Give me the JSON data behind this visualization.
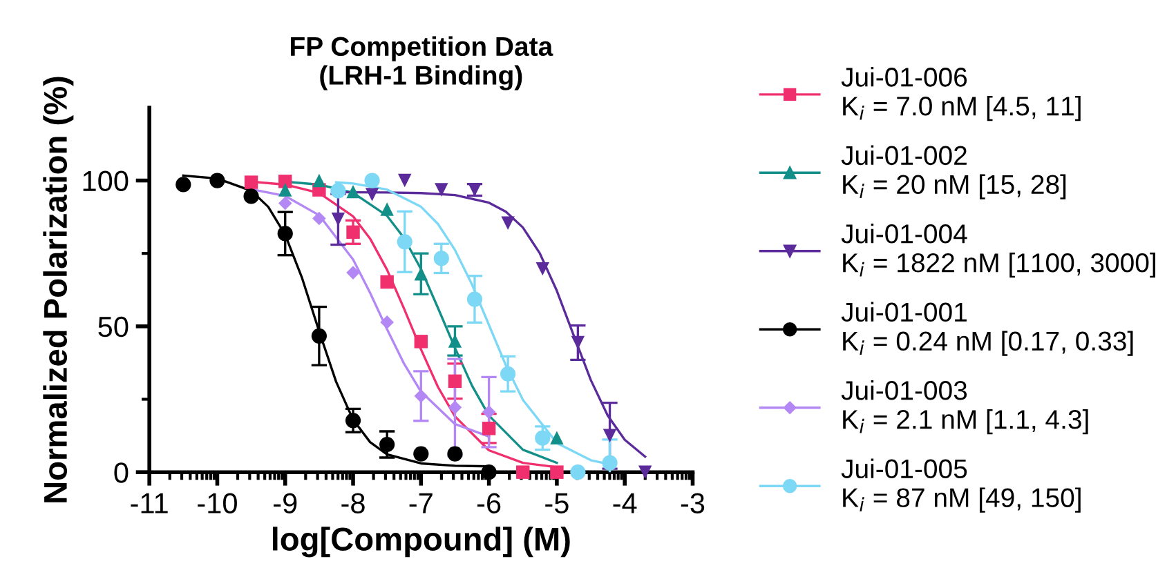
{
  "chart_data": {
    "type": "scatter",
    "title": "FP Competition Data\n(LRH-1 Binding)",
    "xlabel": "log[Compound] (M)",
    "ylabel": "Normalized Polarization (%)",
    "xlim": [
      -11,
      -3
    ],
    "ylim": [
      0,
      125
    ],
    "xticks": [
      -11,
      -10,
      -9,
      -8,
      -7,
      -6,
      -5,
      -4,
      -3,
      {
        "value": -10.699,
        "label": null
      },
      {
        "value": -10.523,
        "label": null
      },
      {
        "value": -10.398,
        "label": null
      },
      {
        "value": -10.301,
        "label": null
      },
      {
        "value": -10.222,
        "label": null
      },
      {
        "value": -10.155,
        "label": null
      },
      {
        "value": -10.097,
        "label": null
      },
      {
        "value": -10.046,
        "label": null
      },
      {
        "value": -9.699,
        "label": null
      },
      {
        "value": -9.523,
        "label": null
      },
      {
        "value": -9.398,
        "label": null
      },
      {
        "value": -9.301,
        "label": null
      },
      {
        "value": -9.222,
        "label": null
      },
      {
        "value": -9.155,
        "label": null
      },
      {
        "value": -9.097,
        "label": null
      },
      {
        "value": -9.046,
        "label": null
      },
      {
        "value": -8.699,
        "label": null
      },
      {
        "value": -8.523,
        "label": null
      },
      {
        "value": -8.398,
        "label": null
      },
      {
        "value": -8.301,
        "label": null
      },
      {
        "value": -8.222,
        "label": null
      },
      {
        "value": -8.155,
        "label": null
      },
      {
        "value": -8.097,
        "label": null
      },
      {
        "value": -8.046,
        "label": null
      },
      {
        "value": -7.699,
        "label": null
      },
      {
        "value": -7.523,
        "label": null
      },
      {
        "value": -7.398,
        "label": null
      },
      {
        "value": -7.301,
        "label": null
      },
      {
        "value": -7.222,
        "label": null
      },
      {
        "value": -7.155,
        "label": null
      },
      {
        "value": -7.097,
        "label": null
      },
      {
        "value": -7.046,
        "label": null
      },
      {
        "value": -6.699,
        "label": null
      },
      {
        "value": -6.523,
        "label": null
      },
      {
        "value": -6.398,
        "label": null
      },
      {
        "value": -6.301,
        "label": null
      },
      {
        "value": -6.222,
        "label": null
      },
      {
        "value": -6.155,
        "label": null
      },
      {
        "value": -6.097,
        "label": null
      },
      {
        "value": -6.046,
        "label": null
      },
      {
        "value": -5.699,
        "label": null
      },
      {
        "value": -5.523,
        "label": null
      },
      {
        "value": -5.398,
        "label": null
      },
      {
        "value": -5.301,
        "label": null
      },
      {
        "value": -5.222,
        "label": null
      },
      {
        "value": -5.155,
        "label": null
      },
      {
        "value": -5.097,
        "label": null
      },
      {
        "value": -5.046,
        "label": null
      },
      {
        "value": -4.699,
        "label": null
      },
      {
        "value": -4.523,
        "label": null
      },
      {
        "value": -4.398,
        "label": null
      },
      {
        "value": -4.301,
        "label": null
      },
      {
        "value": -4.222,
        "label": null
      },
      {
        "value": -4.155,
        "label": null
      },
      {
        "value": -4.097,
        "label": null
      },
      {
        "value": -4.046,
        "label": null
      },
      {
        "value": -3.699,
        "label": null
      },
      {
        "value": -3.523,
        "label": null
      },
      {
        "value": -3.398,
        "label": null
      },
      {
        "value": -3.301,
        "label": null
      },
      {
        "value": -3.222,
        "label": null
      },
      {
        "value": -3.155,
        "label": null
      },
      {
        "value": -3.097,
        "label": null
      },
      {
        "value": -3.046,
        "label": null
      }
    ],
    "yticks": [
      0,
      {
        "value": 25,
        "label": null
      },
      50,
      {
        "value": 75,
        "label": null
      },
      100
    ],
    "grid": false,
    "legend": "right",
    "series": [
      {
        "name": "Jui-01-006\nK$_{i}$ = 7.0 nM [4.5, 11]",
        "marker": "square",
        "color": "#f0306e",
        "x": [
          -9.5,
          -9,
          -8.5,
          -8,
          -7.5,
          -7,
          -6.5,
          -6,
          -5.5,
          -5
        ],
        "values": [
          99.4,
          99.7,
          96.8,
          82.3,
          65.2,
          44.8,
          31.2,
          15,
          0,
          0
        ],
        "errors": [
          null,
          null,
          null,
          4,
          null,
          null,
          6,
          5,
          null,
          null
        ]
      },
      {
        "name": "Jui-01-002\nK$_{i}$ = 20 nM [15, 28]",
        "marker": "triangle",
        "color": "#138f8a",
        "x": [
          -9,
          -8.5,
          -8,
          -7.5,
          -7,
          -6.5,
          -6,
          -5
        ],
        "values": [
          96.8,
          100,
          96.2,
          90.2,
          68,
          45,
          null,
          11.8
        ],
        "errors": [
          null,
          null,
          null,
          null,
          7,
          5,
          null,
          null
        ]
      },
      {
        "name": "Jui-01-004\nK$_{i}$ = 1822 nM [1100, 3000]",
        "marker": "triangle_down",
        "color": "#5b2b9b",
        "x": [
          -8.22,
          -7.72,
          -7.24,
          -6.7,
          -6.21,
          -5.72,
          -5.21,
          -4.69,
          -4.22,
          -3.7
        ],
        "values": [
          86.7,
          95.2,
          100,
          96.8,
          96.8,
          85.4,
          69.7,
          44.4,
          12.5,
          0
        ],
        "errors": [
          8.7,
          null,
          null,
          null,
          2,
          null,
          null,
          5.9,
          11.3,
          null
        ]
      },
      {
        "name": "Jui-01-001\nK$_{i}$ = 0.24 nM [0.17, 0.33]",
        "marker": "circle",
        "color": "#000000",
        "x": [
          -10.5,
          -10,
          -9.5,
          -9,
          -8.5,
          -8,
          -7.5,
          -7,
          -6.5,
          -6
        ],
        "values": [
          98.6,
          100,
          94.6,
          81.8,
          46.7,
          17.7,
          9.5,
          6.3,
          6.3,
          0
        ],
        "errors": [
          null,
          null,
          null,
          7.4,
          10,
          4,
          4.5,
          null,
          null,
          null
        ]
      },
      {
        "name": "Jui-01-003\nK$_{i}$ = 2.1 nM [1.1, 4.3]",
        "marker": "diamond",
        "color": "#b388f5",
        "x": [
          -9,
          -8.5,
          -8,
          -7.5,
          -7,
          -6.5,
          -6
        ],
        "values": [
          92.2,
          87,
          68.4,
          51.4,
          26.1,
          22.2,
          20.6
        ],
        "errors": [
          null,
          null,
          null,
          null,
          8.5,
          16.6,
          12
        ]
      },
      {
        "name": "Jui-01-005\nK$_{i}$ = 87 nM [49, 150]",
        "marker": "circle",
        "color": "#7dd8f6",
        "x": [
          -8.22,
          -7.72,
          -7.24,
          -6.7,
          -6.21,
          -5.72,
          -5.21,
          -4.69,
          -4.22
        ],
        "values": [
          96.5,
          100,
          79,
          73.3,
          59.3,
          33.7,
          11.7,
          0,
          3.2
        ],
        "errors": [
          null,
          null,
          10.4,
          5,
          8,
          6,
          4,
          null,
          8
        ]
      },
      {
        "type": "line",
        "color": "#f0306e",
        "x": [
          -9.5,
          -9,
          -8.5,
          -8,
          -7.75,
          -7.5,
          -7.25,
          -7,
          -6.75,
          -6.5,
          -6,
          -5.5,
          -5
        ],
        "values": [
          99.6,
          98.6,
          95.7,
          87.7,
          80.1,
          69.4,
          56.1,
          42.1,
          29.2,
          19.1,
          7.5,
          3.2,
          1.7
        ]
      },
      {
        "type": "line",
        "color": "#138f8a",
        "x": [
          -9,
          -8.5,
          -8,
          -7.5,
          -7.25,
          -7,
          -6.75,
          -6.5,
          -6.25,
          -6,
          -5.5,
          -5
        ],
        "values": [
          99.6,
          98.6,
          95.8,
          87.9,
          80.3,
          69.6,
          56.3,
          42.6,
          29.7,
          19.4,
          7.7,
          3.2
        ]
      },
      {
        "type": "line",
        "color": "#5b2b9b",
        "x": [
          -8.25,
          -7.5,
          -7,
          -6.5,
          -6,
          -5.75,
          -5.5,
          -5.25,
          -5,
          -4.75,
          -4.5,
          -4.25,
          -4,
          -3.7
        ],
        "values": [
          96,
          95.9,
          95.7,
          95,
          92.4,
          89.3,
          83.9,
          75,
          62.2,
          46.8,
          31.6,
          19.4,
          11.1,
          5.3
        ]
      },
      {
        "type": "line",
        "color": "#000000",
        "x": [
          -10.5,
          -10,
          -9.5,
          -9.25,
          -9,
          -8.75,
          -8.5,
          -8.25,
          -8,
          -7.75,
          -7.5,
          -7,
          -6.5,
          -6
        ],
        "values": [
          101.7,
          100.7,
          96.5,
          91,
          81.4,
          66.5,
          48.3,
          31,
          18,
          10.3,
          6.1,
          3,
          2.2,
          2
        ]
      },
      {
        "type": "line",
        "color": "#b388f5",
        "x": [
          -9.5,
          -9,
          -8.5,
          -8,
          -7.75,
          -7.5,
          -7.25,
          -7,
          -6.5,
          -6
        ],
        "values": [
          97,
          94.7,
          88.1,
          72.9,
          61.5,
          49,
          37.2,
          27.6,
          16.5,
          12.2
        ]
      },
      {
        "type": "line",
        "color": "#7dd8f6",
        "x": [
          -8.25,
          -8,
          -7.5,
          -7,
          -6.75,
          -6.5,
          -6.25,
          -6,
          -5.75,
          -5.5,
          -5,
          -4.5,
          -4.2
        ],
        "values": [
          99.4,
          99,
          96.9,
          91,
          85.1,
          76.2,
          64.4,
          50.5,
          36.6,
          24.8,
          10,
          4.1,
          2.6
        ]
      }
    ]
  }
}
